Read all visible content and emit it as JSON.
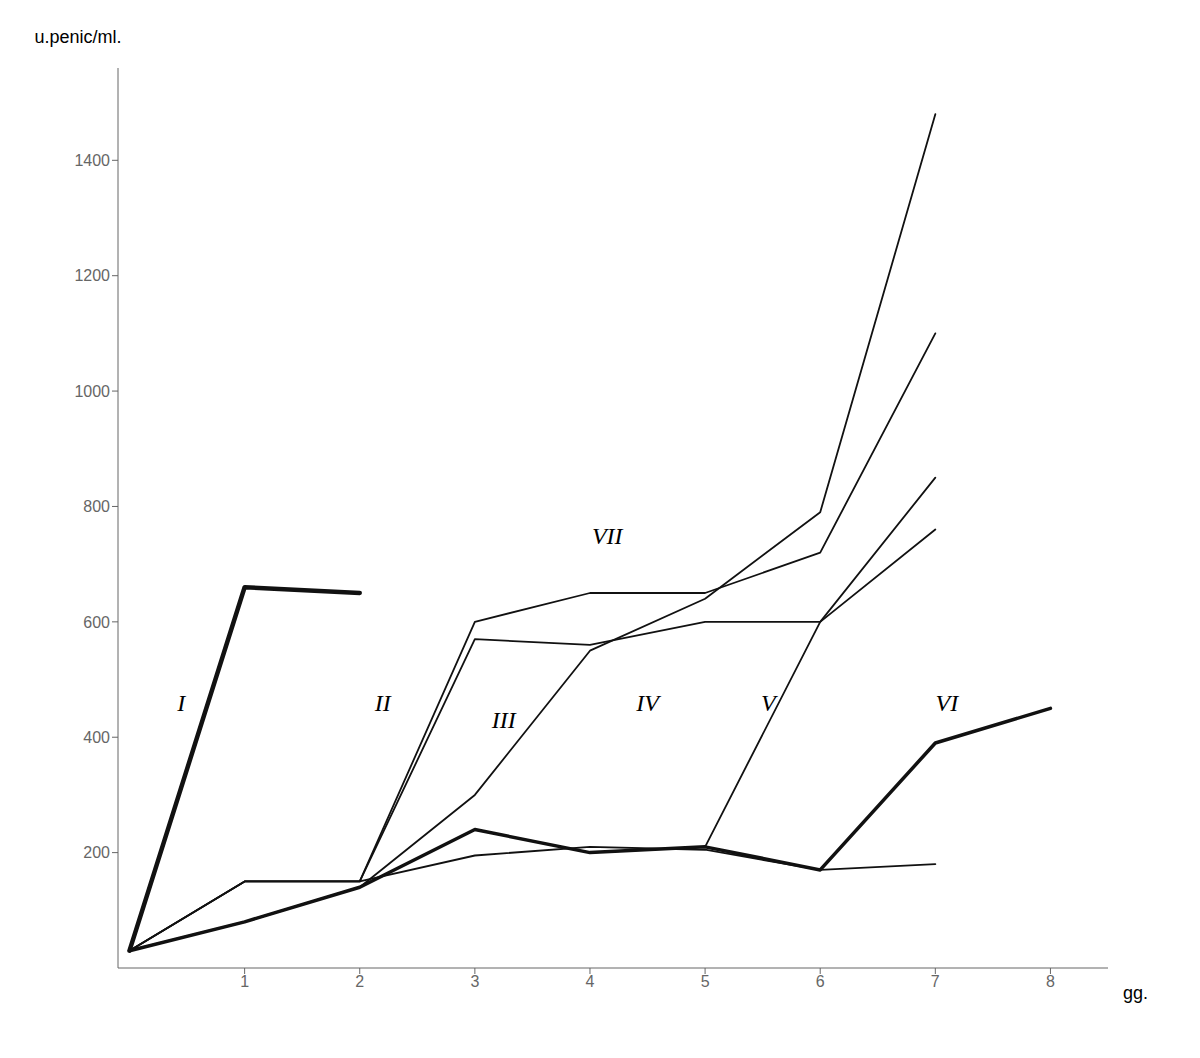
{
  "chart_data": {
    "type": "line",
    "x_label": "gg.",
    "y_label": "u.penic/ml.",
    "xlim": [
      -0.1,
      8.5
    ],
    "ylim": [
      0,
      1560
    ],
    "xticks": [
      1,
      2,
      3,
      4,
      5,
      6,
      7,
      8
    ],
    "yticks": [
      200,
      400,
      600,
      800,
      1000,
      1200,
      1400
    ],
    "grid": false,
    "series": [
      {
        "color": "#111111",
        "x": [
          0,
          1,
          2
        ],
        "values": [
          30,
          660,
          650
        ]
      },
      {
        "color": "#111111",
        "x": [
          0,
          1,
          2,
          3,
          4,
          5,
          6,
          7
        ],
        "values": [
          30,
          150,
          150,
          600,
          650,
          650,
          720,
          1100
        ]
      },
      {
        "color": "#111111",
        "x": [
          0,
          1,
          2,
          3,
          4,
          5,
          6,
          7
        ],
        "values": [
          30,
          150,
          150,
          570,
          560,
          600,
          600,
          850
        ]
      },
      {
        "color": "#111111",
        "x": [
          0,
          1,
          2,
          3,
          4,
          5,
          6,
          7
        ],
        "values": [
          30,
          80,
          140,
          300,
          550,
          640,
          790,
          1480
        ]
      },
      {
        "color": "#111111",
        "x": [
          0,
          1,
          2,
          3,
          4,
          5,
          6,
          7
        ],
        "values": [
          30,
          80,
          140,
          240,
          200,
          210,
          600,
          760
        ]
      },
      {
        "color": "#111111",
        "x": [
          0,
          1,
          2,
          3,
          4,
          5,
          6,
          7,
          8
        ],
        "values": [
          30,
          80,
          140,
          240,
          200,
          210,
          170,
          390,
          450
        ]
      },
      {
        "color": "#111111",
        "x": [
          0,
          1,
          2,
          3,
          4,
          5,
          6,
          7
        ],
        "values": [
          30,
          150,
          150,
          195,
          210,
          205,
          170,
          180
        ]
      }
    ],
    "annotations": [
      {
        "text": "I",
        "x": 0.45,
        "y": 460
      },
      {
        "text": "II",
        "x": 2.2,
        "y": 460
      },
      {
        "text": "III",
        "x": 3.25,
        "y": 430
      },
      {
        "text": "IV",
        "x": 4.5,
        "y": 460
      },
      {
        "text": "V",
        "x": 5.55,
        "y": 460
      },
      {
        "text": "VI",
        "x": 7.1,
        "y": 460
      },
      {
        "text": "VII",
        "x": 4.15,
        "y": 750
      }
    ]
  }
}
